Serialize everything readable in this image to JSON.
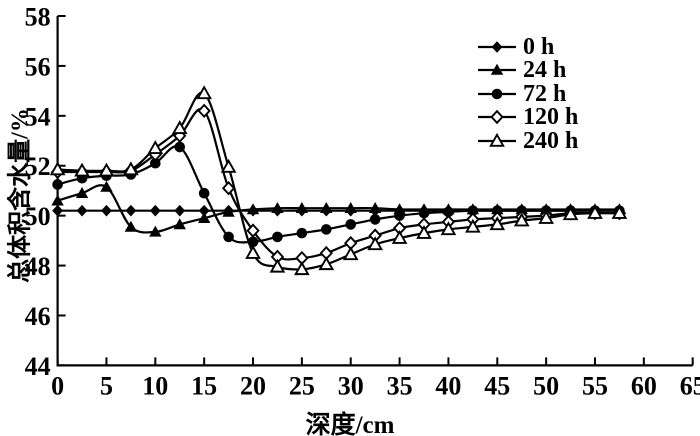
{
  "chart_data": {
    "type": "line",
    "title": "",
    "xlabel": "深度/cm",
    "ylabel": "总体积含水量/%",
    "xlim": [
      0,
      65
    ],
    "ylim": [
      44,
      58
    ],
    "xticks": [
      0,
      5,
      10,
      15,
      20,
      25,
      30,
      35,
      40,
      45,
      50,
      55,
      60,
      65
    ],
    "yticks": [
      44,
      46,
      48,
      50,
      52,
      54,
      56,
      58
    ],
    "grid": false,
    "legend_position": "upper-right-inside",
    "line_color": "#000000",
    "background": "#ffffff",
    "x": [
      0,
      2.5,
      5,
      7.5,
      10,
      12.5,
      15,
      17.5,
      20,
      22.5,
      25,
      27.5,
      30,
      32.5,
      35,
      37.5,
      40,
      42.5,
      45,
      47.5,
      50,
      52.5,
      55,
      57.5
    ],
    "series": [
      {
        "name": "0 h",
        "marker": "filled-diamond",
        "values": [
          50.2,
          50.2,
          50.2,
          50.2,
          50.2,
          50.2,
          50.2,
          50.2,
          50.2,
          50.2,
          50.2,
          50.2,
          50.2,
          50.2,
          50.2,
          50.2,
          50.2,
          50.2,
          50.2,
          50.2,
          50.2,
          50.2,
          50.2,
          50.2
        ]
      },
      {
        "name": "24 h",
        "marker": "filled-triangle",
        "values": [
          50.6,
          50.9,
          51.15,
          49.55,
          49.35,
          49.65,
          49.9,
          50.15,
          50.25,
          50.3,
          50.3,
          50.3,
          50.3,
          50.3,
          50.25,
          50.25,
          50.25,
          50.25,
          50.25,
          50.25,
          50.25,
          50.25,
          50.25,
          50.25
        ]
      },
      {
        "name": "72 h",
        "marker": "filled-circle",
        "values": [
          51.25,
          51.5,
          51.6,
          51.65,
          52.1,
          52.75,
          50.9,
          49.15,
          48.95,
          49.15,
          49.3,
          49.45,
          49.65,
          49.85,
          50.0,
          50.1,
          50.15,
          50.2,
          50.2,
          50.2,
          50.2,
          50.2,
          50.2,
          50.2
        ]
      },
      {
        "name": "120 h",
        "marker": "open-diamond",
        "values": [
          51.75,
          51.75,
          51.75,
          51.8,
          52.45,
          53.2,
          54.2,
          51.1,
          49.4,
          48.35,
          48.3,
          48.5,
          48.9,
          49.2,
          49.5,
          49.65,
          49.75,
          49.85,
          49.9,
          49.95,
          50.0,
          50.1,
          50.1,
          50.1
        ]
      },
      {
        "name": "240 h",
        "marker": "open-triangle",
        "values": [
          51.85,
          51.8,
          51.8,
          51.85,
          52.7,
          53.5,
          54.9,
          51.95,
          48.5,
          47.95,
          47.85,
          48.05,
          48.45,
          48.85,
          49.1,
          49.3,
          49.45,
          49.55,
          49.65,
          49.8,
          49.9,
          50.05,
          50.1,
          50.1
        ]
      }
    ]
  }
}
